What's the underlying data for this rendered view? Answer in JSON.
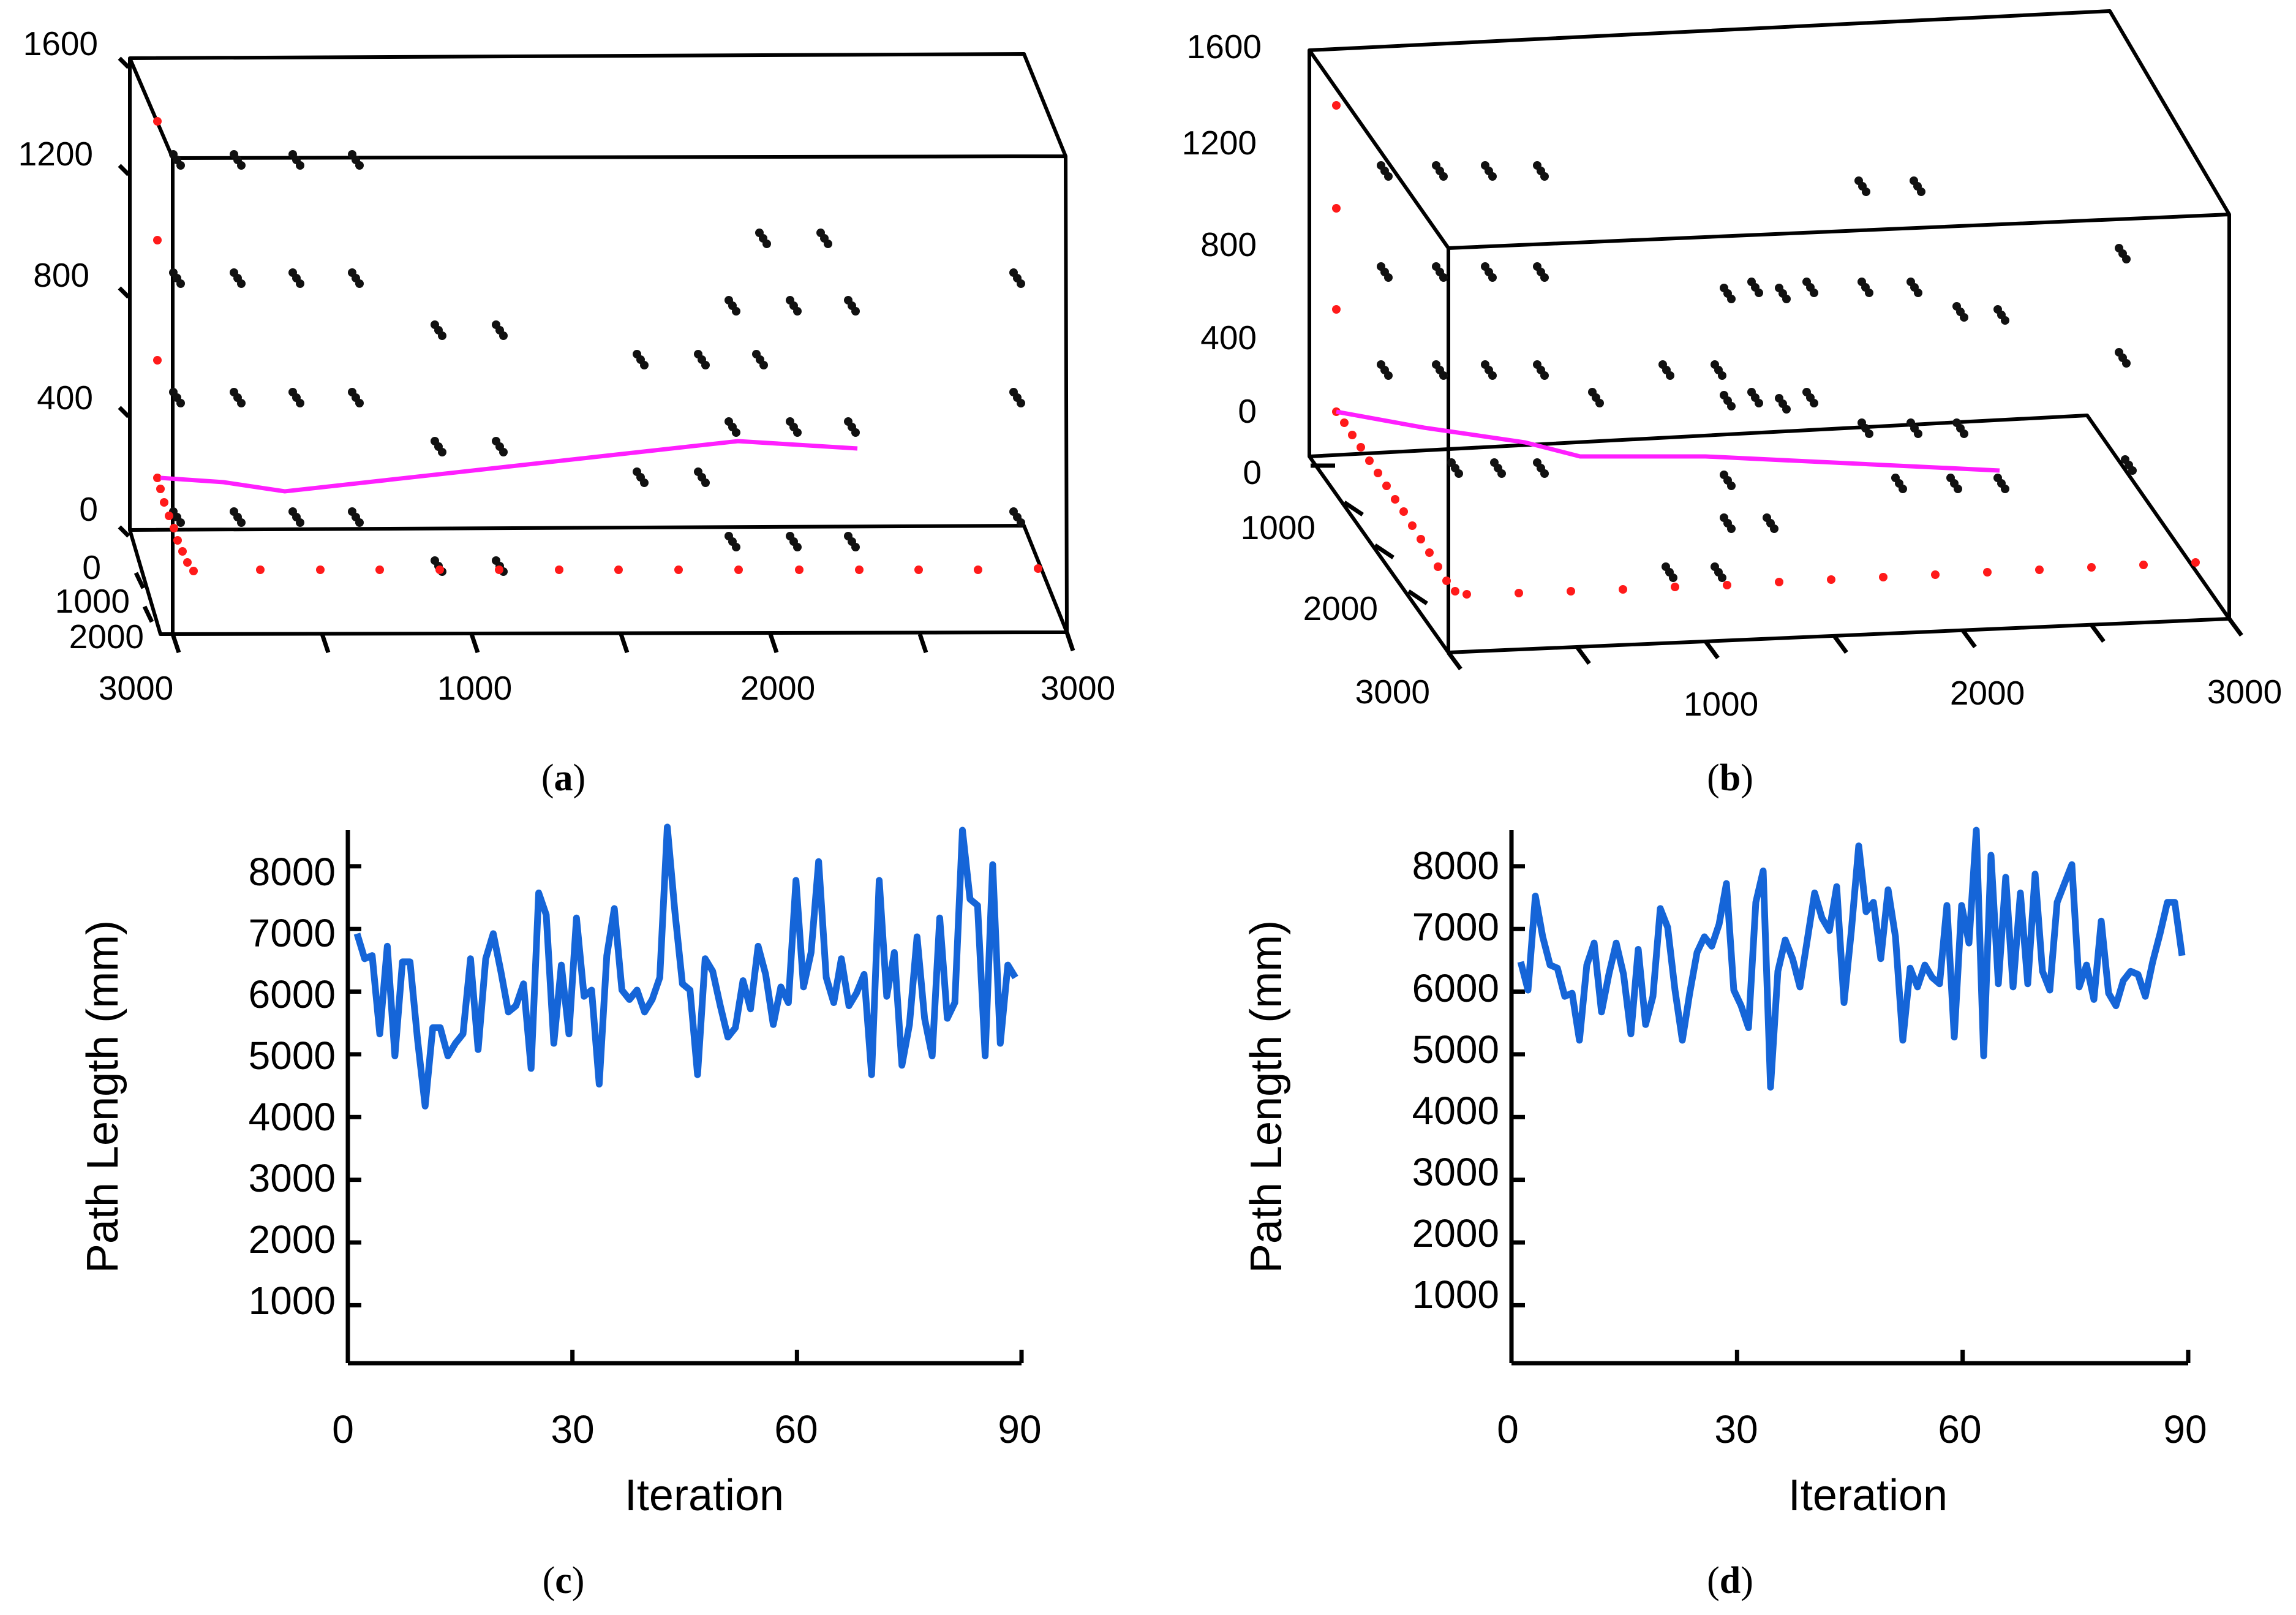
{
  "panels": {
    "a": {
      "caption_open": "(",
      "caption_letter": "a",
      "caption_close": ")"
    },
    "b": {
      "caption_open": "(",
      "caption_letter": "b",
      "caption_close": ")"
    },
    "c": {
      "caption_open": "(",
      "caption_letter": "c",
      "caption_close": ")"
    },
    "d": {
      "caption_open": "(",
      "caption_letter": "d",
      "caption_close": ")"
    }
  },
  "colors": {
    "path": "#ff1fff",
    "line": "#1565d8",
    "obstacle": "#111111",
    "waypoint": "#ff1a1a"
  },
  "chart_data": [
    {
      "id": "a",
      "type": "scatter",
      "title": "",
      "z_ticks": [
        "1600",
        "1200",
        "800",
        "400",
        "0"
      ],
      "x_ticks": [
        "3000",
        "1000",
        "2000",
        "3000"
      ],
      "y_ticks": [
        "0",
        "1000",
        "2000"
      ],
      "x_range": [
        0,
        3000
      ],
      "y_range": [
        0,
        2000
      ],
      "z_range": [
        0,
        1600
      ],
      "path_points": [
        [
          0,
          160
        ],
        [
          190,
          110
        ],
        [
          380,
          300
        ],
        [
          450,
          250
        ]
      ]
    },
    {
      "id": "b",
      "type": "scatter",
      "title": "",
      "z_ticks": [
        "1600",
        "1200",
        "800",
        "400",
        "0"
      ],
      "x_ticks": [
        "1000",
        "2000",
        "3000"
      ],
      "y_ticks": [
        "1000",
        "2000",
        "3000"
      ],
      "x_range": [
        0,
        3000
      ],
      "y_range": [
        0,
        3000
      ],
      "z_range": [
        0,
        1600
      ],
      "path_points": [
        [
          0,
          100
        ],
        [
          100,
          40
        ],
        [
          180,
          0
        ],
        [
          470,
          0
        ]
      ]
    },
    {
      "id": "c",
      "type": "line",
      "title": "",
      "xlabel": "Iteration",
      "ylabel": "Path Length (mm)",
      "xlim": [
        0,
        90
      ],
      "ylim": [
        0,
        8500
      ],
      "x_ticks": [
        "0",
        "30",
        "60",
        "90"
      ],
      "y_ticks": [
        "1000",
        "2000",
        "3000",
        "4000",
        "5000",
        "6000",
        "7000",
        "8000"
      ],
      "series": [
        {
          "name": "Path Length",
          "values": [
            6950,
            6550,
            6600,
            5350,
            6750,
            5000,
            6500,
            6500,
            5250,
            4200,
            5450,
            5450,
            5000,
            5200,
            5350,
            6550,
            5100,
            6550,
            6950,
            6350,
            5700,
            5800,
            6150,
            4800,
            7600,
            7250,
            5200,
            6450,
            5350,
            7200,
            5950,
            6050,
            4550,
            6600,
            7350,
            6050,
            5900,
            6050,
            5700,
            5900,
            6250,
            8650,
            7300,
            6150,
            6050,
            4700,
            6550,
            6350,
            5800,
            5300,
            5450,
            6200,
            5750,
            6750,
            6300,
            5500,
            6100,
            5850,
            7800,
            6100,
            6650,
            8100,
            6250,
            5850,
            6550,
            5800,
            6000,
            6300,
            4700,
            7800,
            5950,
            6650,
            4850,
            5500,
            6900,
            5600,
            5000,
            7200,
            5600,
            5850,
            8600,
            7500,
            7400,
            5000,
            8050,
            5200,
            6450,
            6250
          ]
        }
      ]
    },
    {
      "id": "d",
      "type": "line",
      "title": "",
      "xlabel": "Iteration",
      "ylabel": "Path Length (mm)",
      "xlim": [
        0,
        90
      ],
      "ylim": [
        0,
        8500
      ],
      "x_ticks": [
        "0",
        "30",
        "60",
        "90"
      ],
      "y_ticks": [
        "1000",
        "2000",
        "3000",
        "4000",
        "5000",
        "6000",
        "7000",
        "8000"
      ],
      "series": [
        {
          "name": "Path Length",
          "values": [
            6500,
            6050,
            7550,
            6900,
            6450,
            6400,
            5950,
            6000,
            5250,
            6450,
            6800,
            5700,
            6300,
            6800,
            6300,
            5350,
            6700,
            5500,
            5950,
            7350,
            7050,
            6050,
            5250,
            6000,
            6650,
            6900,
            6750,
            7100,
            7750,
            6050,
            5800,
            5450,
            7450,
            7950,
            4500,
            6350,
            6850,
            6550,
            6100,
            6850,
            7600,
            7200,
            7000,
            7700,
            5850,
            7000,
            8350,
            7300,
            7450,
            6550,
            7650,
            6900,
            5250,
            6400,
            6100,
            6450,
            6250,
            6150,
            7400,
            5300,
            7400,
            6800,
            8600,
            5000,
            8200,
            6150,
            7850,
            6100,
            7600,
            6150,
            7900,
            6350,
            6050,
            7450,
            7750,
            8050,
            6100,
            6450,
            5900,
            7150,
            6000,
            5800,
            6200,
            6350,
            6300,
            5950,
            6500,
            6950,
            7450,
            7450,
            6600
          ]
        }
      ]
    }
  ]
}
